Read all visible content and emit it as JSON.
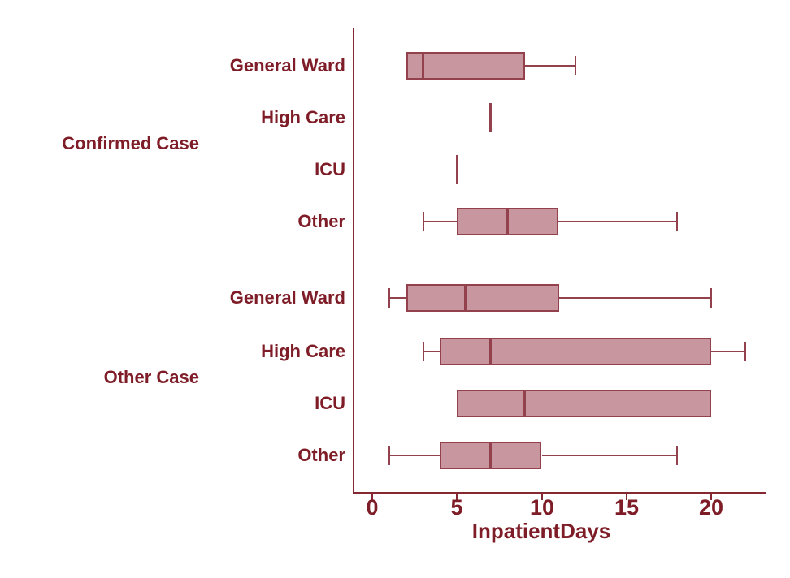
{
  "chart_data": {
    "type": "boxplot",
    "orientation": "horizontal",
    "title": "",
    "xlabel": "InpatientDays",
    "ylabel": "",
    "x_ticks": [
      "0",
      "5",
      "10",
      "15",
      "20"
    ],
    "x_tick_values": [
      0,
      5,
      10,
      15,
      20
    ],
    "xlim": [
      -1.1,
      23.3
    ],
    "grid": false,
    "legend": "none",
    "colors": {
      "text": "#7e1d27",
      "axis": "#842832",
      "box_border": "#93424d",
      "box_fill": "#c7969e",
      "background": "#ffffff"
    },
    "groups": [
      {
        "label": "Confirmed Case",
        "rows": [
          {
            "label": "General Ward",
            "min": 2,
            "q1": 2,
            "median": 3,
            "q3": 9,
            "max": 12
          },
          {
            "label": "High Care",
            "min": 7,
            "q1": 7,
            "median": 7,
            "q3": 7,
            "max": 7
          },
          {
            "label": "ICU",
            "min": 5,
            "q1": 5,
            "median": 5,
            "q3": 5,
            "max": 5
          },
          {
            "label": "Other",
            "min": 3,
            "q1": 5,
            "median": 8,
            "q3": 11,
            "max": 18
          }
        ]
      },
      {
        "label": "Other Case",
        "rows": [
          {
            "label": "General Ward",
            "min": 1,
            "q1": 2,
            "median": 5.5,
            "q3": 11,
            "max": 20
          },
          {
            "label": "High Care",
            "min": 3,
            "q1": 4,
            "median": 7,
            "q3": 20,
            "max": 22
          },
          {
            "label": "ICU",
            "min": 5,
            "q1": 5,
            "median": 9,
            "q3": 20,
            "max": 20
          },
          {
            "label": "Other",
            "min": 1,
            "q1": 4,
            "median": 7,
            "q3": 10,
            "max": 18
          }
        ]
      }
    ]
  }
}
